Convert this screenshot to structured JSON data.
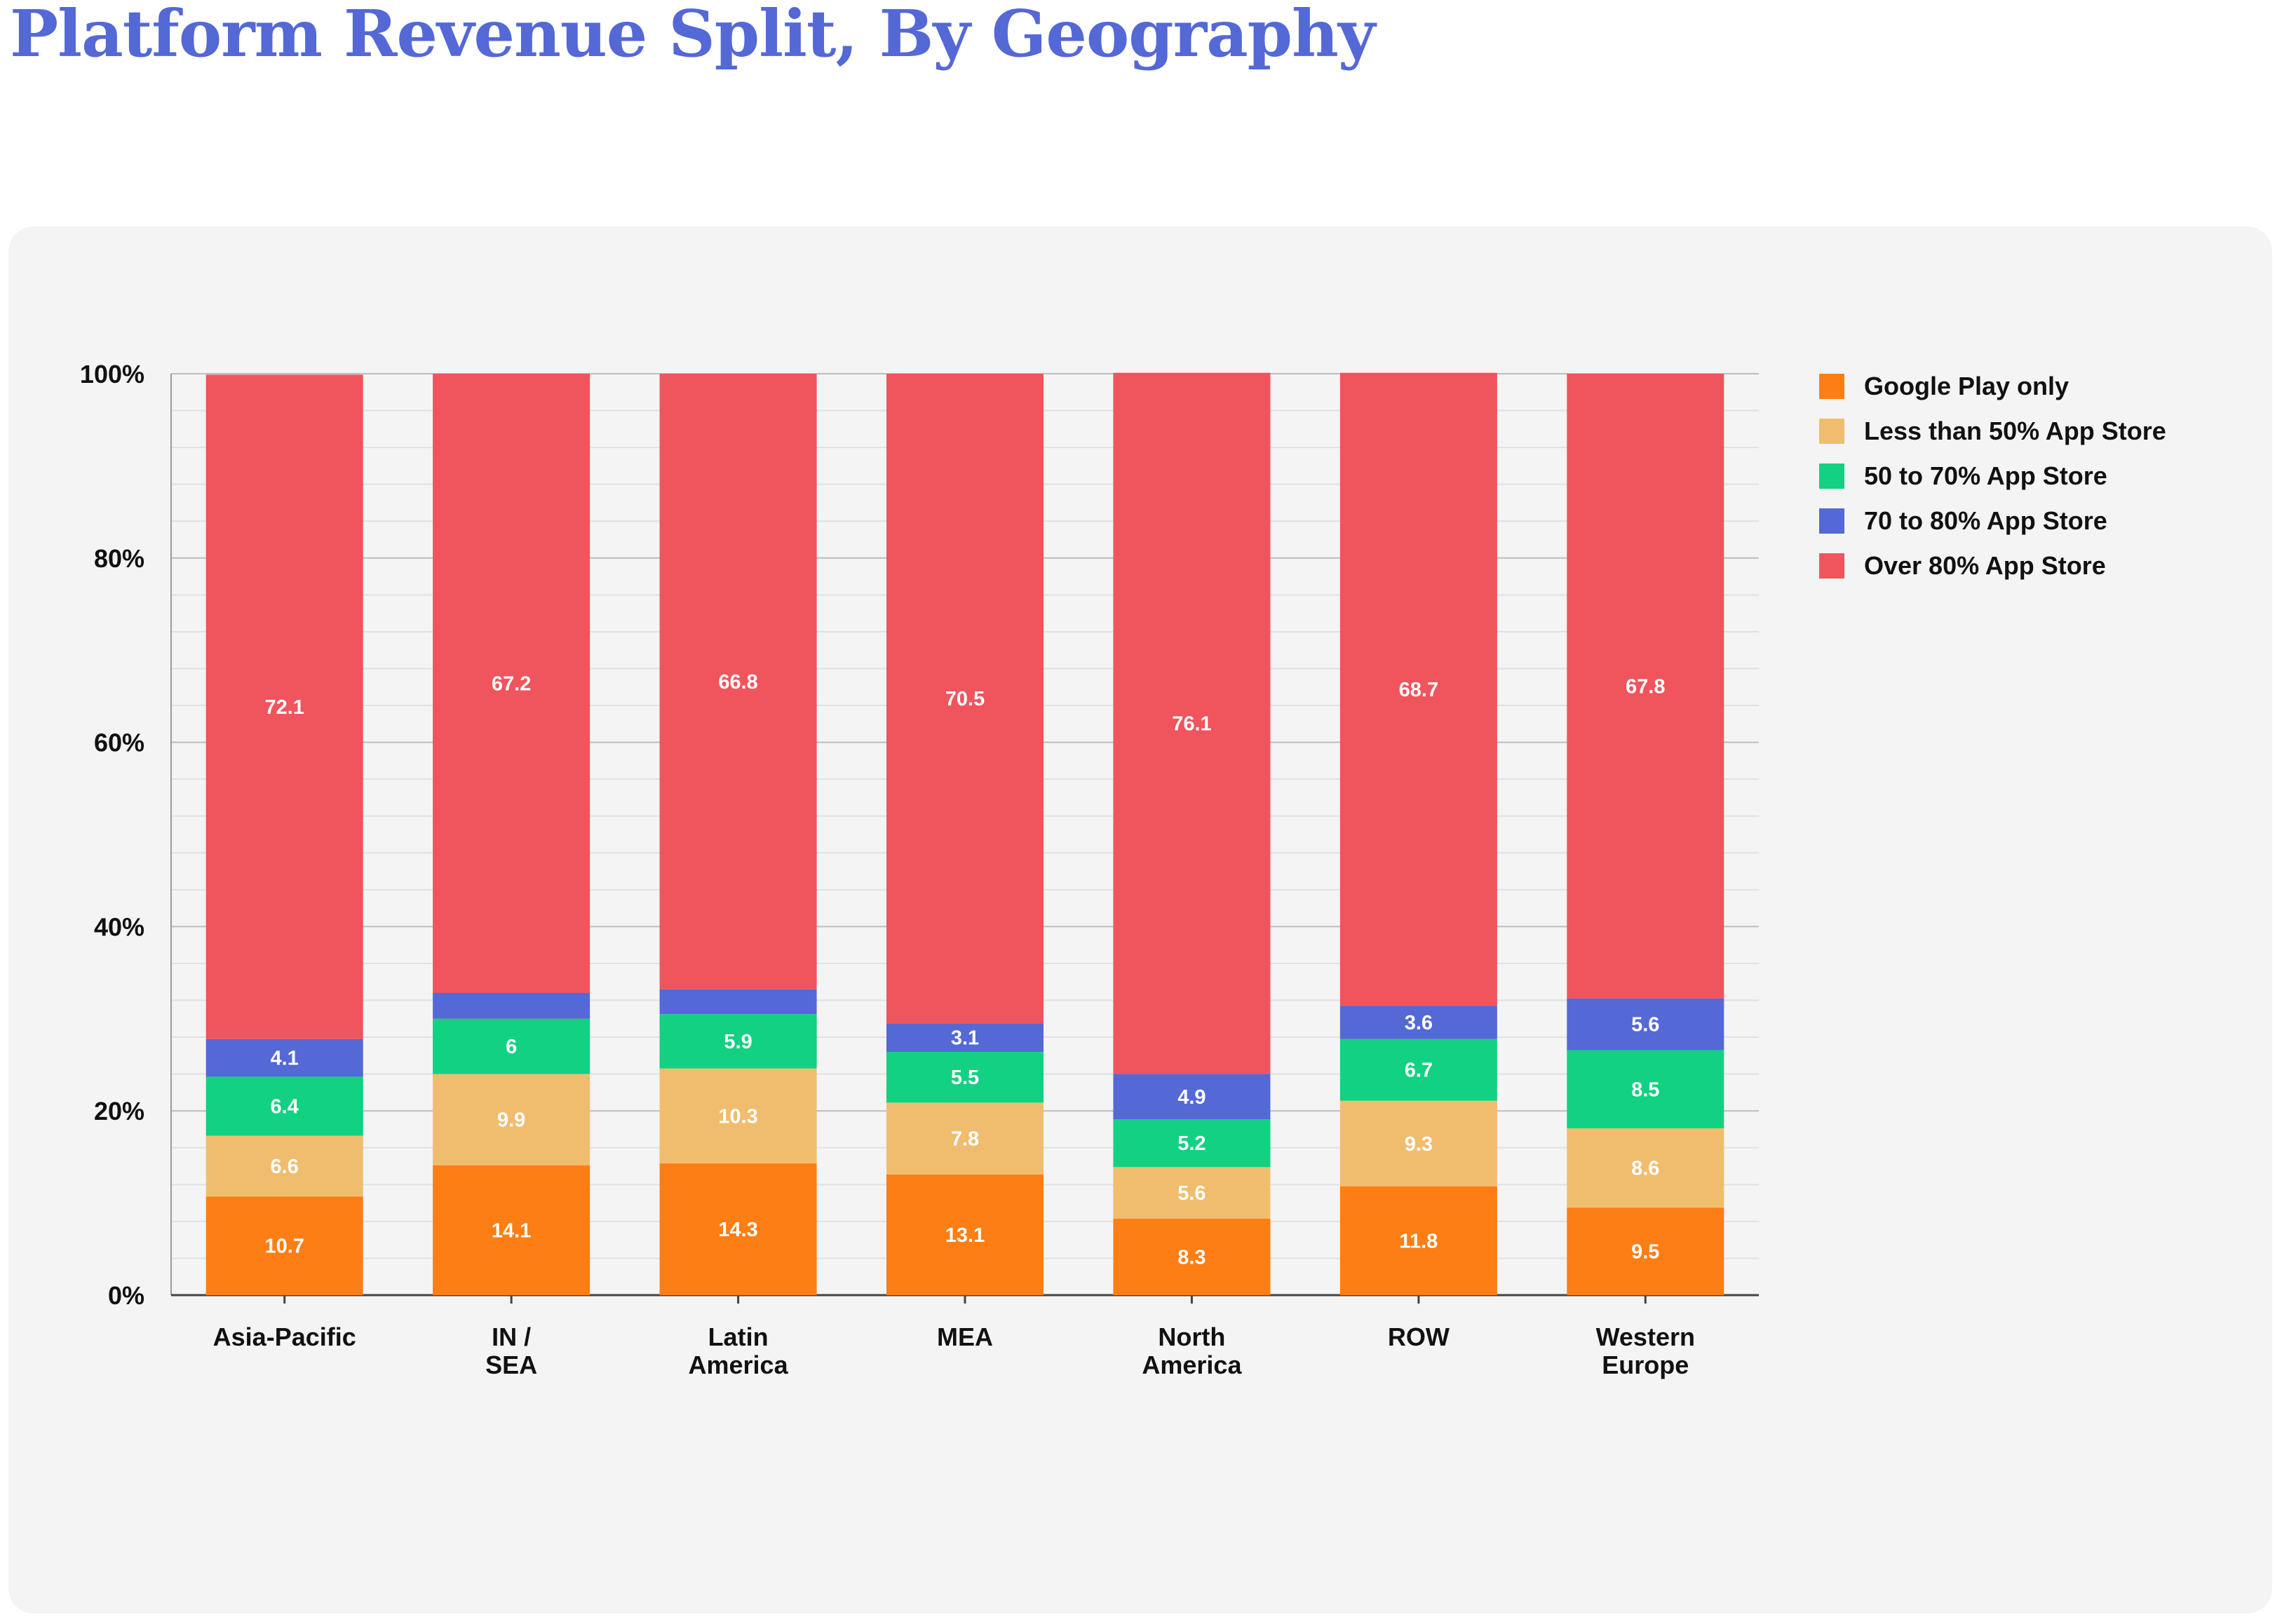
{
  "page": {
    "title": "Platform Revenue Split, By Geography"
  },
  "colors": {
    "title": "#5468d6",
    "panel_background": "#f4f4f4",
    "Google Play only": "#fd7e14",
    "Less than 50% App Store": "#f0bd6f",
    "50 to 70% App Store": "#12d182",
    "70 to 80% App Store": "#5468d6",
    "Over 80% App Store": "#f0545c"
  },
  "chart_data": {
    "type": "bar",
    "stacked": true,
    "categories": [
      "Asia-Pacific",
      "IN / SEA",
      "Latin America",
      "MEA",
      "North America",
      "ROW",
      "Western Europe"
    ],
    "category_lines": [
      [
        "Asia-Pacific"
      ],
      [
        "IN /",
        "SEA"
      ],
      [
        "Latin",
        "America"
      ],
      [
        "MEA"
      ],
      [
        "North",
        "America"
      ],
      [
        "ROW"
      ],
      [
        "Western",
        "Europe"
      ]
    ],
    "series": [
      {
        "name": "Google Play only",
        "values": [
          10.7,
          14.1,
          14.3,
          13.1,
          8.3,
          11.8,
          9.5
        ]
      },
      {
        "name": "Less than 50% App Store",
        "values": [
          6.6,
          9.9,
          10.3,
          7.8,
          5.6,
          9.3,
          8.6
        ]
      },
      {
        "name": "50 to 70% App Store",
        "values": [
          6.4,
          6,
          5.9,
          5.5,
          5.2,
          6.7,
          8.5
        ]
      },
      {
        "name": "70 to 80% App Store",
        "values": [
          4.1,
          null,
          null,
          3.1,
          4.9,
          3.6,
          5.6
        ]
      },
      {
        "name": "Over 80% App Store",
        "values": [
          72.1,
          67.2,
          66.8,
          70.5,
          76.1,
          68.7,
          67.8
        ]
      }
    ],
    "ylim": [
      0,
      100
    ],
    "y_ticks": [
      0,
      20,
      40,
      60,
      80,
      100
    ],
    "y_tick_labels": [
      "0%",
      "20%",
      "40%",
      "60%",
      "80%",
      "100%"
    ],
    "grid": true,
    "legend_position": "right"
  }
}
